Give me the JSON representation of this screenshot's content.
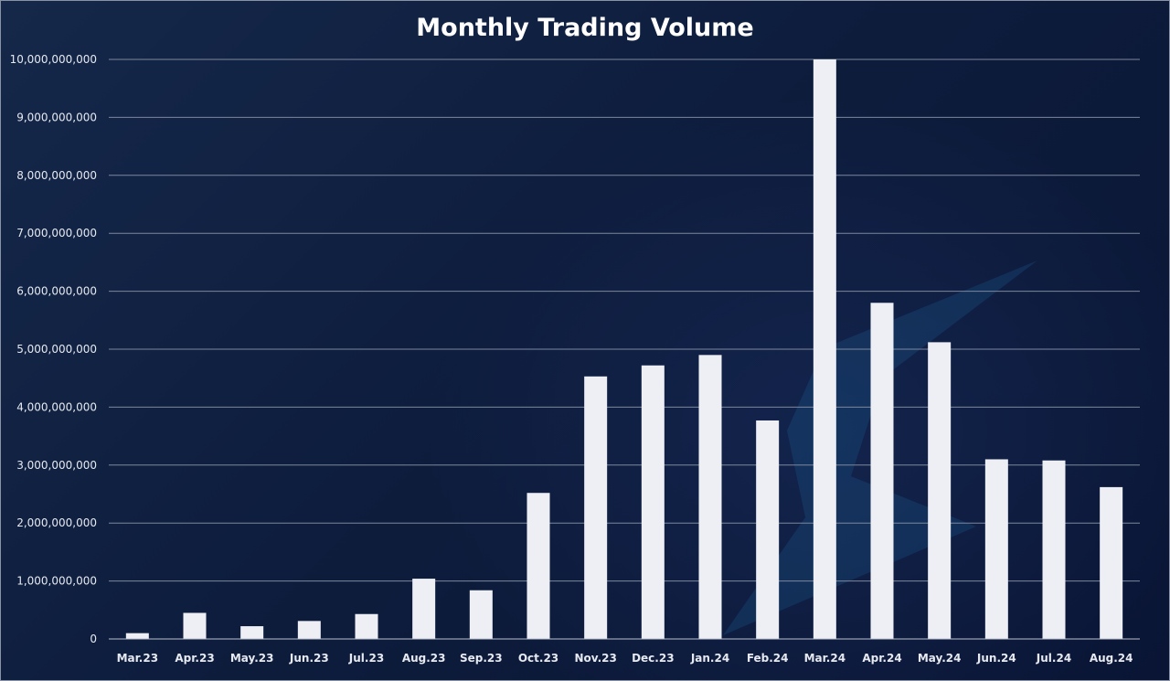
{
  "chart_data": {
    "type": "bar",
    "title": "Monthly Trading Volume",
    "xlabel": "",
    "ylabel": "",
    "categories": [
      "Mar.23",
      "Apr.23",
      "May.23",
      "Jun.23",
      "Jul.23",
      "Aug.23",
      "Sep.23",
      "Oct.23",
      "Nov.23",
      "Dec.23",
      "Jan.24",
      "Feb.24",
      "Mar.24",
      "Apr.24",
      "May.24",
      "Jun.24",
      "Jul.24",
      "Aug.24"
    ],
    "values": [
      100000000,
      450000000,
      220000000,
      310000000,
      430000000,
      1040000000,
      840000000,
      2520000000,
      4530000000,
      4720000000,
      4900000000,
      3770000000,
      10000000000,
      5800000000,
      5120000000,
      3100000000,
      3080000000,
      2620000000
    ],
    "ylim": [
      0,
      10000000000
    ],
    "yticks": [
      0,
      1000000000,
      2000000000,
      3000000000,
      4000000000,
      5000000000,
      6000000000,
      7000000000,
      8000000000,
      9000000000,
      10000000000
    ],
    "ytick_labels": [
      "0",
      "1,000,000,000",
      "2,000,000,000",
      "3,000,000,000",
      "4,000,000,000",
      "5,000,000,000",
      "6,000,000,000",
      "7,000,000,000",
      "8,000,000,000",
      "9,000,000,000",
      "10,000,000,000"
    ],
    "grid": true,
    "legend": "none",
    "colors": {
      "bar": "#eeeff4",
      "grid": "#7d879c",
      "axis": "#b9c0cf",
      "text": "#e6e9f0",
      "background": "#0e1d3d",
      "watermark": "#1c5a8c"
    }
  }
}
